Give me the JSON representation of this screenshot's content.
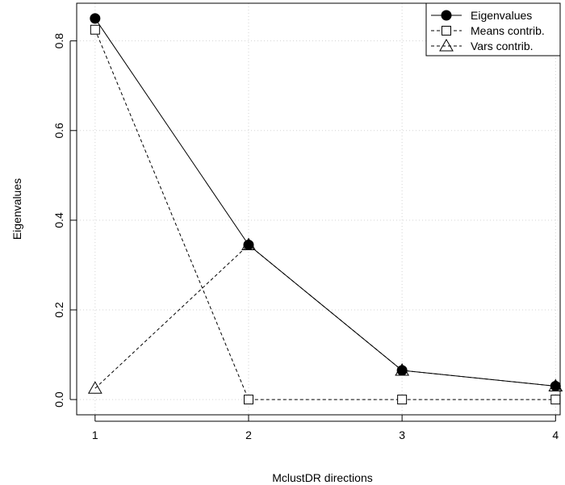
{
  "chart_data": {
    "type": "line",
    "xlabel": "MclustDR directions",
    "ylabel": "Eigenvalues",
    "x": [
      1,
      2,
      3,
      4
    ],
    "xticks": [
      "1",
      "2",
      "3",
      "4"
    ],
    "yticks": [
      "0.0",
      "0.2",
      "0.4",
      "0.6",
      "0.8"
    ],
    "xlim": [
      0.88,
      4.03
    ],
    "ylim": [
      -0.034,
      0.884
    ],
    "grid": true,
    "legend_position": "top-right",
    "series": [
      {
        "name": "Eigenvalues",
        "values": [
          0.85,
          0.345,
          0.065,
          0.03
        ],
        "marker": "filled-circle",
        "line": "solid"
      },
      {
        "name": "Means contrib.",
        "values": [
          0.825,
          0.0,
          0.0,
          0.0
        ],
        "marker": "open-square",
        "line": "dashed"
      },
      {
        "name": "Vars contrib.",
        "values": [
          0.025,
          0.345,
          0.065,
          0.03
        ],
        "marker": "open-triangle",
        "line": "dashed"
      }
    ]
  }
}
